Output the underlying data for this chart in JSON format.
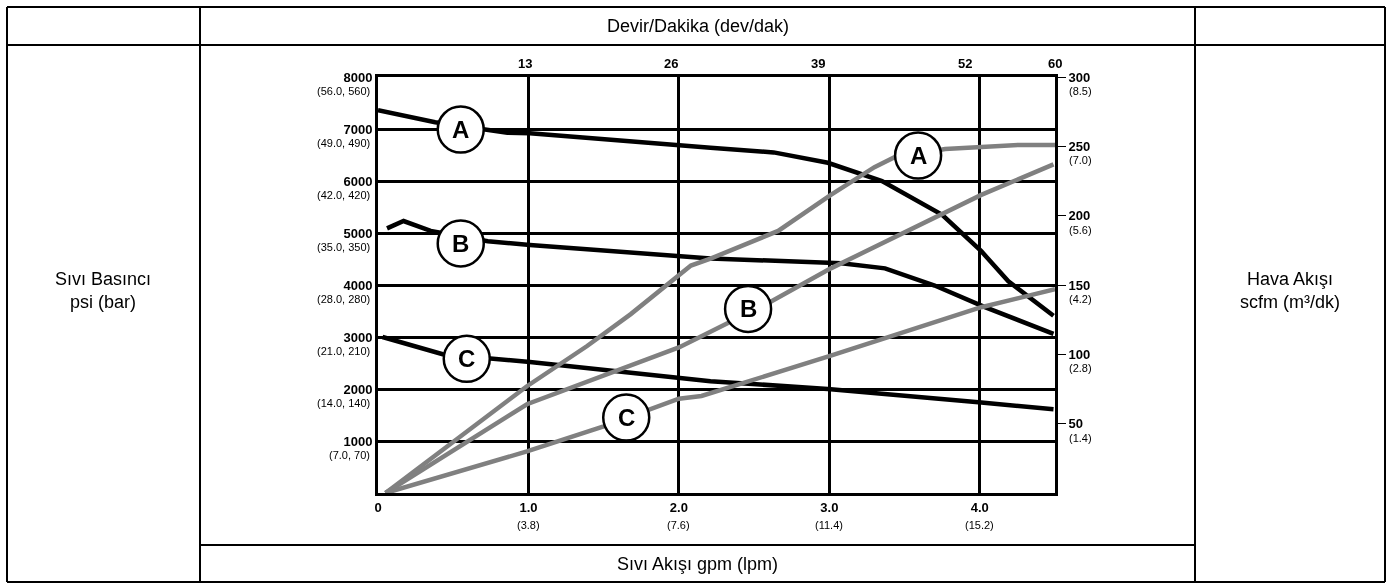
{
  "chart_data": {
    "type": "line",
    "xlabel": "Sıvı Akışı gpm (lpm)",
    "x2label": "Devir/Dakika (dev/dak)",
    "xlim": [
      0,
      4.5
    ],
    "xticks": [
      0,
      {
        "value": 1,
        "label": "1.0"
      },
      {
        "value": 2,
        "label": "2.0"
      },
      {
        "value": 3,
        "label": "3.0"
      },
      {
        "value": 4,
        "label": "4.0"
      }
    ],
    "x2lim": [
      0,
      60
    ],
    "x2ticks": [
      13,
      26,
      39,
      52,
      60
    ],
    "ylim": [
      0,
      8000
    ],
    "yticks": [
      1000,
      2000,
      3000,
      4000,
      5000,
      6000,
      7000,
      8000
    ],
    "y2lim": [
      0,
      300
    ],
    "y2ticks": [
      50,
      100,
      150,
      200,
      250,
      300
    ],
    "grid": true,
    "marker": "none",
    "line_style": "solid",
    "series": [
      {
        "color": "#000000",
        "x": [
          0,
          0.38,
          0.86,
          1.01,
          2.21,
          2.63,
          2.99,
          3.35,
          3.75,
          4.01,
          4.19,
          4.49
        ],
        "values": [
          7360,
          7130,
          6930,
          6920,
          6640,
          6550,
          6350,
          6000,
          5350,
          4650,
          4070,
          3410
        ]
      },
      {
        "color": "#000000",
        "x": [
          0.06,
          0.17,
          0.35,
          0.73,
          1.01,
          2.21,
          3.08,
          3.37,
          3.7,
          4.03,
          4.49
        ],
        "values": [
          5090,
          5230,
          5040,
          4840,
          4770,
          4510,
          4420,
          4320,
          3990,
          3580,
          3060
        ]
      },
      {
        "color": "#000000",
        "x": [
          0.03,
          0.43,
          1.01,
          2.21,
          2.99,
          4.01,
          4.49
        ],
        "values": [
          3000,
          2670,
          2520,
          2150,
          2000,
          1740,
          1610
        ]
      },
      {
        "color": "#808080",
        "axis": "y2",
        "x": [
          0.05,
          0.99,
          1.39,
          1.68,
          2.08,
          2.21,
          2.66,
          3.01,
          3.3,
          3.43,
          3.77,
          4.26,
          4.5
        ],
        "values": [
          0,
          77,
          106,
          129,
          164,
          169,
          189,
          215,
          235,
          242,
          248,
          251,
          251
        ]
      },
      {
        "color": "#808080",
        "axis": "y2",
        "x": [
          0.05,
          0.99,
          2.0,
          2.15,
          2.61,
          3.01,
          4.01,
          4.49
        ],
        "values": [
          0,
          64,
          105,
          113,
          138,
          162,
          215,
          237
        ]
      },
      {
        "color": "#808080",
        "axis": "y2",
        "x": [
          0.05,
          0.99,
          1.5,
          2.0,
          2.15,
          3.01,
          4.01,
          4.5
        ],
        "values": [
          0,
          30,
          48,
          68,
          70,
          99,
          134,
          147
        ]
      }
    ],
    "annotations": [
      {
        "text": "A",
        "x": 0.55,
        "y": 6990
      },
      {
        "text": "B",
        "x": 0.55,
        "y": 4800
      },
      {
        "text": "C",
        "x": 0.59,
        "y": 2580
      },
      {
        "text": "A",
        "x": 3.59,
        "y": 6490
      },
      {
        "text": "B",
        "x": 2.46,
        "y": 3540
      },
      {
        "text": "C",
        "x": 1.65,
        "y": 1450
      },
      "Sıvı Basıncı\npsi (bar)",
      "Hava Akışı\nscfm (m³/dk)",
      "(3.8)",
      "(7.6)",
      "(11.4)",
      "(15.2)",
      "(7.0, 70)",
      "(14.0, 140)",
      "(21.0, 210)",
      "(28.0, 280)",
      "(35.0, 350)",
      "(42.0, 420)",
      "(49.0, 490)",
      "(56.0, 560)",
      "(1.4)",
      "(2.8)",
      "(4.2)",
      "(5.6)",
      "(7.0)",
      "(8.5)"
    ]
  }
}
